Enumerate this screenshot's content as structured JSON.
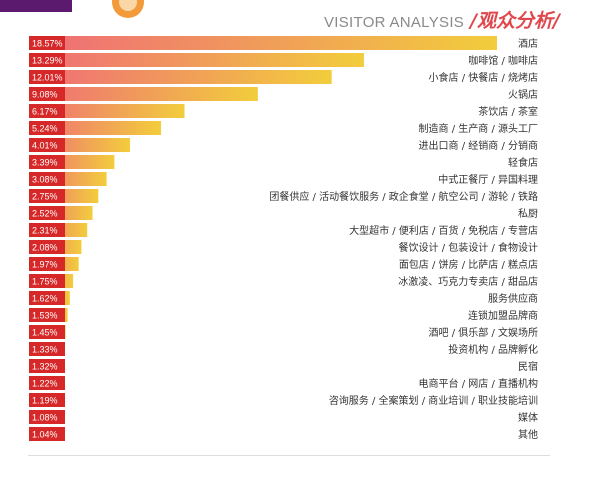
{
  "header": {
    "title_en": "VISITOR ANALYSIS",
    "title_zh": "/观众分析/"
  },
  "colors": {
    "value_box": "#d62828",
    "bar_start": "#ef6b78",
    "bar_end": "#f2cd3c",
    "title_accent": "#e0474c",
    "deco_dark": "#5b1a6e",
    "deco_orange": "#f39a3a"
  },
  "chart_data": {
    "type": "bar",
    "orientation": "horizontal",
    "title": "",
    "xlabel": "",
    "ylabel": "",
    "xlim": [
      0,
      18.57
    ],
    "grid": false,
    "legend": "none",
    "categories": [
      "酒店",
      "咖啡馆 / 咖啡店",
      "小食店 / 快餐店 / 烧烤店",
      "火锅店",
      "茶饮店 / 茶室",
      "制造商 / 生产商 / 源头工厂",
      "进出口商 / 经销商 / 分销商",
      "轻食店",
      "中式正餐厅 / 异国料理",
      "团餐供应 / 活动餐饮服务 / 政企食堂 / 航空公司 / 游轮 / 铁路",
      "私厨",
      "大型超市 / 便利店 / 百货 / 免税店 / 专营店",
      "餐饮设计 / 包装设计 / 食物设计",
      "面包店 / 饼房 / 比萨店 / 糕点店",
      "冰激凌、巧克力专卖店 / 甜品店",
      "服务供应商",
      "连锁加盟品牌商",
      "酒吧 / 俱乐部 / 文娱场所",
      "投资机构 / 品牌孵化",
      "民宿",
      "电商平台 / 网店 / 直播机构",
      "咨询服务 / 全案策划 / 商业培训 / 职业技能培训",
      "媒体",
      "其他"
    ],
    "values": [
      18.57,
      13.29,
      12.01,
      9.08,
      6.17,
      5.24,
      4.01,
      3.39,
      3.08,
      2.75,
      2.52,
      2.31,
      2.08,
      1.97,
      1.75,
      1.62,
      1.53,
      1.45,
      1.33,
      1.32,
      1.22,
      1.19,
      1.08,
      1.04
    ],
    "value_labels": [
      "18.57%",
      "13.29%",
      "12.01%",
      "9.08%",
      "6.17%",
      "5.24%",
      "4.01%",
      "3.39%",
      "3.08%",
      "2.75%",
      "2.52%",
      "2.31%",
      "2.08%",
      "1.97%",
      "1.75%",
      "1.62%",
      "1.53%",
      "1.45%",
      "1.33%",
      "1.32%",
      "1.22%",
      "1.19%",
      "1.08%",
      "1.04%"
    ]
  }
}
